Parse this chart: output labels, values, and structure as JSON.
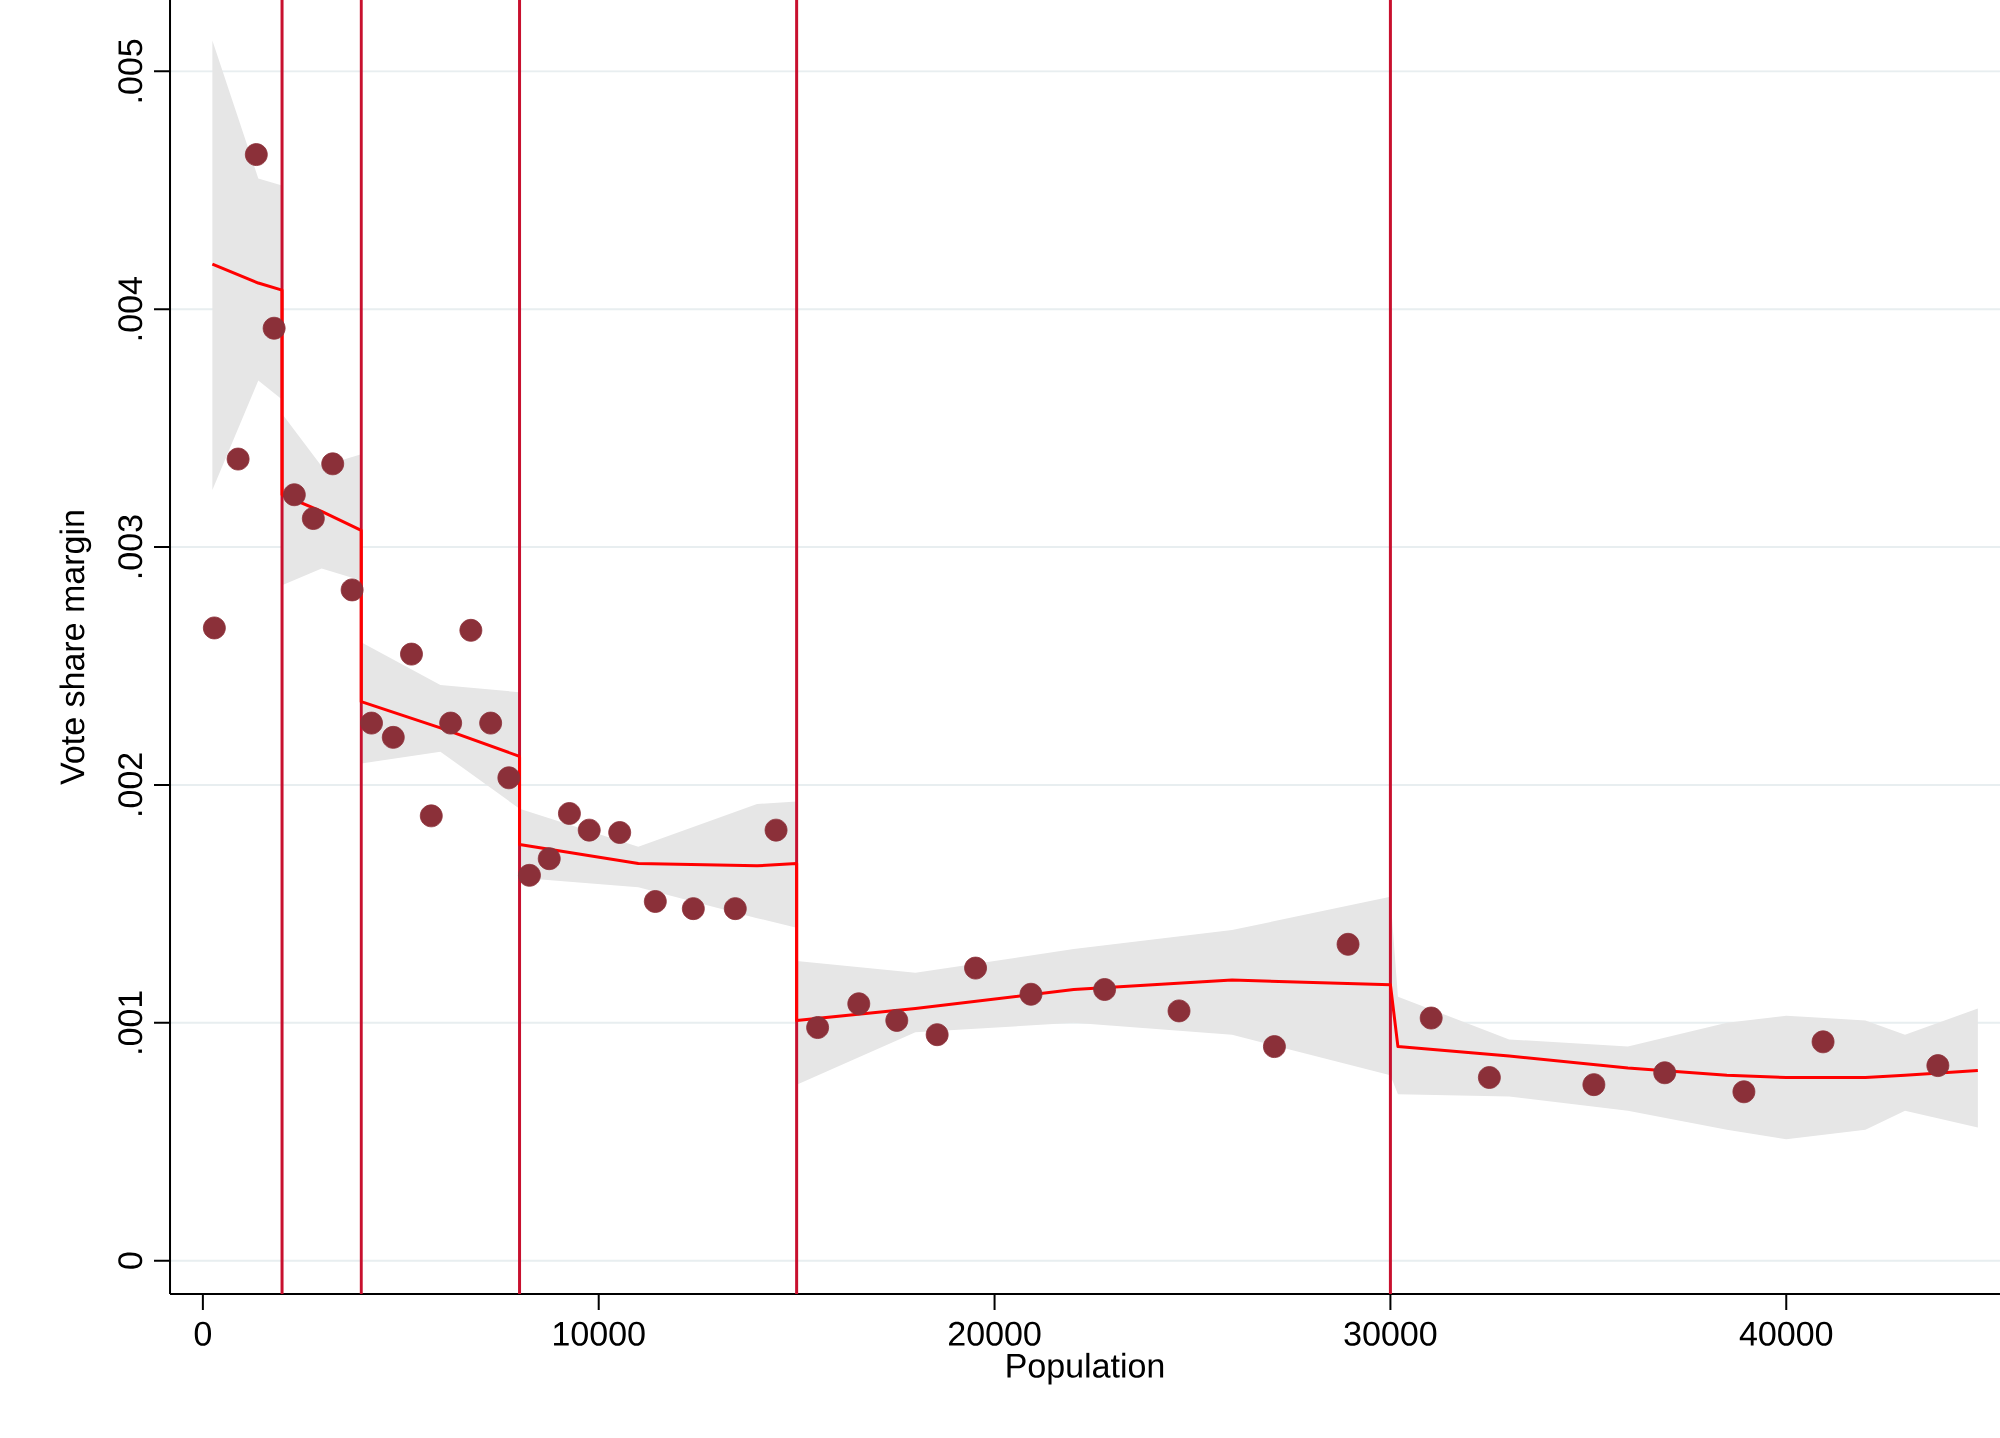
{
  "chart_data": {
    "type": "scatter",
    "xlabel": "Population",
    "ylabel": "Vote share margin",
    "xlim": [
      -830,
      45400
    ],
    "ylim": [
      -0.00014,
      0.0053
    ],
    "xticks": [
      0,
      10000,
      20000,
      30000,
      40000
    ],
    "yticks": [
      0,
      {
        "value": 0.001,
        "label": ".001"
      },
      {
        "value": 0.002,
        "label": ".002"
      },
      {
        "value": 0.003,
        "label": ".003"
      },
      {
        "value": 0.004,
        "label": ".004"
      },
      {
        "value": 0.005,
        "label": ".005"
      }
    ],
    "grid": "y",
    "ref_lines": [
      {
        "axis": "x",
        "value": 2000,
        "color": "#c8102e"
      },
      {
        "axis": "x",
        "value": 4000,
        "color": "#c8102e"
      },
      {
        "axis": "x",
        "value": 8000,
        "color": "#c8102e"
      },
      {
        "axis": "x",
        "value": 15000,
        "color": "#c8102e"
      },
      {
        "axis": "x",
        "value": 30000,
        "color": "#c8102e"
      }
    ],
    "series": [
      {
        "color": "#8b3039",
        "marker": "circle",
        "x": [
          290,
          890,
          1350,
          1800,
          2310,
          2790,
          3280,
          3770,
          4260,
          4810,
          5270,
          5770,
          6260,
          6770,
          7270,
          7730,
          8250,
          8750,
          9260,
          9760,
          10530,
          11430,
          12390,
          13450,
          14480,
          15530,
          16570,
          17530,
          18550,
          19520,
          20920,
          22780,
          24660,
          27070,
          28930,
          31030,
          32500,
          35140,
          36930,
          38930,
          40930,
          43830
        ],
        "values": [
          0.00266,
          0.00337,
          0.00465,
          0.00392,
          0.00322,
          0.00312,
          0.00335,
          0.00282,
          0.00226,
          0.0022,
          0.00255,
          0.00187,
          0.00226,
          0.00265,
          0.00226,
          0.00203,
          0.00162,
          0.00169,
          0.00188,
          0.00181,
          0.0018,
          0.00151,
          0.00148,
          0.00148,
          0.00181,
          0.00098,
          0.00108,
          0.00101,
          0.00095,
          0.00123,
          0.00112,
          0.00114,
          0.00105,
          0.0009,
          0.00133,
          0.00102,
          0.00077,
          0.00074,
          0.00079,
          0.00071,
          0.00092,
          0.00082
        ]
      },
      {
        "type": "line",
        "color": "#ff0000",
        "x": [
          240,
          1400,
          2000,
          2000,
          3000,
          4000,
          4000,
          6000,
          8000,
          8000,
          11000,
          14000,
          15000,
          15000,
          18000,
          22000,
          26000,
          30000,
          30190,
          33000,
          36000,
          38500,
          40000,
          42000,
          43000,
          44840
        ],
        "values": [
          0.00419,
          0.00411,
          0.00408,
          0.00322,
          0.00315,
          0.00307,
          0.00235,
          0.00224,
          0.00212,
          0.00175,
          0.00167,
          0.00166,
          0.00167,
          0.00101,
          0.00106,
          0.00114,
          0.00118,
          0.00116,
          0.0009,
          0.00086,
          0.00081,
          0.00078,
          0.00077,
          0.00077,
          0.00078,
          0.0008
        ],
        "lower": [
          0.00324,
          0.0037,
          0.00362,
          0.00284,
          0.00291,
          0.00286,
          0.00209,
          0.00214,
          0.0019,
          0.00161,
          0.00157,
          0.00144,
          0.0014,
          0.00074,
          0.00096,
          0.001,
          0.00095,
          0.00078,
          0.0007,
          0.00069,
          0.00063,
          0.00055,
          0.00051,
          0.00055,
          0.00063,
          0.00056
        ],
        "upper": [
          0.00513,
          0.00455,
          0.00452,
          0.00356,
          0.00334,
          0.00339,
          0.0026,
          0.00242,
          0.00239,
          0.0019,
          0.00174,
          0.00192,
          0.00193,
          0.00126,
          0.00121,
          0.00131,
          0.00139,
          0.00153,
          0.00111,
          0.00093,
          0.0009,
          0.001,
          0.00103,
          0.00101,
          0.00095,
          0.00106
        ]
      }
    ]
  }
}
